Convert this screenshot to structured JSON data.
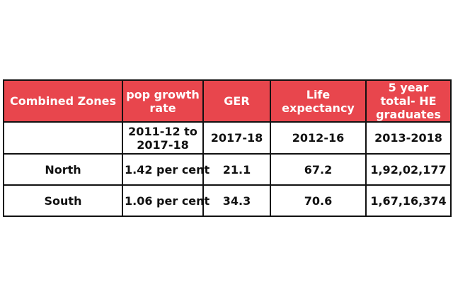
{
  "table": {
    "headers": [
      "Combined Zones",
      "pop growth rate",
      "GER",
      "Life expectancy",
      "5 year total- HE graduates"
    ],
    "periods": [
      "",
      "2011-12 to 2017-18",
      "2017-18",
      "2012-16",
      "2013-2018"
    ],
    "rows": [
      {
        "zone": "North",
        "pop_growth": "1.42 per cent",
        "ger": "21.1",
        "life_expectancy": "67.2",
        "graduates": "1,92,02,177"
      },
      {
        "zone": "South",
        "pop_growth": "1.06 per cent",
        "ger": "34.3",
        "life_expectancy": "70.6",
        "graduates": "1,67,16,374"
      }
    ]
  },
  "colors": {
    "header_bg": "#e8464d",
    "header_text": "#ffffff",
    "border": "#111111"
  }
}
